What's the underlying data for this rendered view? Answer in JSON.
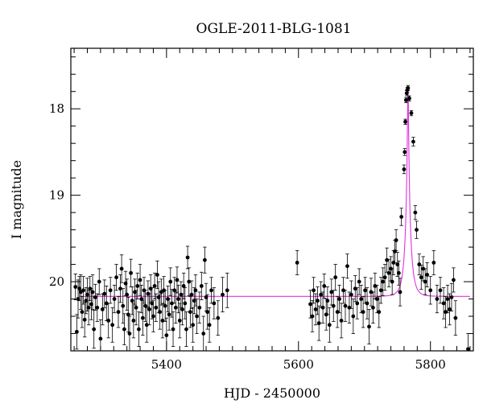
{
  "chart_data": {
    "type": "scatter",
    "title": "OGLE-2011-BLG-1081",
    "xlabel": "HJD - 2450000",
    "ylabel": "I magnitude",
    "xlim": [
      5255,
      5865
    ],
    "ylim": [
      20.8,
      17.3
    ],
    "y_inverted": true,
    "xticks_major": [
      5400,
      5600,
      5800
    ],
    "xticks_minor_step": 20,
    "yticks_major": [
      18,
      19,
      20
    ],
    "yticks_minor_step": 0.2,
    "model_color": "#e033e0",
    "point_color": "#000000",
    "model": {
      "baseline_mag": 20.17,
      "peak_hjd": 5766,
      "peak_mag": 17.75,
      "tE": 8.5,
      "u0": 0.088
    },
    "series": [
      {
        "points": [
          [
            5262,
            20.06,
            0.15
          ],
          [
            5264,
            20.58,
            0.2
          ],
          [
            5266,
            20.2,
            0.22
          ],
          [
            5268,
            20.08,
            0.14
          ],
          [
            5270,
            20.12,
            0.2
          ],
          [
            5272,
            20.35,
            0.18
          ],
          [
            5274,
            20.1,
            0.16
          ],
          [
            5276,
            20.44,
            0.2
          ],
          [
            5278,
            20.22,
            0.15
          ],
          [
            5280,
            20.15,
            0.19
          ],
          [
            5282,
            20.3,
            0.2
          ],
          [
            5284,
            20.08,
            0.14
          ],
          [
            5286,
            20.26,
            0.18
          ],
          [
            5288,
            20.12,
            0.2
          ],
          [
            5290,
            20.55,
            0.22
          ],
          [
            5292,
            20.18,
            0.15
          ],
          [
            5295,
            20.3,
            0.16
          ],
          [
            5298,
            20.0,
            0.15
          ],
          [
            5300,
            20.66,
            0.22
          ],
          [
            5303,
            20.32,
            0.18
          ],
          [
            5306,
            20.14,
            0.16
          ],
          [
            5309,
            20.25,
            0.2
          ],
          [
            5312,
            20.45,
            0.2
          ],
          [
            5315,
            20.1,
            0.15
          ],
          [
            5318,
            20.5,
            0.2
          ],
          [
            5321,
            20.2,
            0.16
          ],
          [
            5324,
            19.95,
            0.15
          ],
          [
            5327,
            20.35,
            0.18
          ],
          [
            5330,
            20.08,
            0.16
          ],
          [
            5332,
            19.85,
            0.16
          ],
          [
            5334,
            20.28,
            0.2
          ],
          [
            5336,
            20.55,
            0.18
          ],
          [
            5338,
            20.02,
            0.14
          ],
          [
            5340,
            20.15,
            0.18
          ],
          [
            5342,
            20.38,
            0.2
          ],
          [
            5344,
            20.6,
            0.2
          ],
          [
            5346,
            19.9,
            0.16
          ],
          [
            5348,
            20.22,
            0.16
          ],
          [
            5350,
            20.45,
            0.2
          ],
          [
            5352,
            20.12,
            0.15
          ],
          [
            5354,
            20.3,
            0.2
          ],
          [
            5356,
            20.05,
            0.15
          ],
          [
            5358,
            20.55,
            0.2
          ],
          [
            5360,
            19.98,
            0.18
          ],
          [
            5362,
            20.2,
            0.16
          ],
          [
            5364,
            20.42,
            0.2
          ],
          [
            5366,
            20.1,
            0.15
          ],
          [
            5368,
            20.28,
            0.18
          ],
          [
            5370,
            20.5,
            0.2
          ],
          [
            5372,
            20.14,
            0.15
          ],
          [
            5374,
            20.32,
            0.18
          ],
          [
            5376,
            20.08,
            0.16
          ],
          [
            5378,
            20.25,
            0.18
          ],
          [
            5380,
            20.4,
            0.18
          ],
          [
            5382,
            20.05,
            0.15
          ],
          [
            5384,
            20.3,
            0.16
          ],
          [
            5386,
            19.92,
            0.16
          ],
          [
            5388,
            20.18,
            0.18
          ],
          [
            5390,
            20.35,
            0.2
          ],
          [
            5392,
            20.12,
            0.15
          ],
          [
            5394,
            20.45,
            0.2
          ],
          [
            5396,
            20.1,
            0.16
          ],
          [
            5398,
            20.28,
            0.18
          ],
          [
            5400,
            20.62,
            0.2
          ],
          [
            5402,
            20.2,
            0.15
          ],
          [
            5404,
            20.38,
            0.18
          ],
          [
            5406,
            20.0,
            0.16
          ],
          [
            5408,
            20.25,
            0.16
          ],
          [
            5410,
            20.55,
            0.2
          ],
          [
            5412,
            20.1,
            0.15
          ],
          [
            5414,
            20.3,
            0.18
          ],
          [
            5416,
            19.98,
            0.15
          ],
          [
            5418,
            20.2,
            0.16
          ],
          [
            5420,
            20.45,
            0.2
          ],
          [
            5422,
            20.15,
            0.15
          ],
          [
            5424,
            20.32,
            0.18
          ],
          [
            5426,
            20.05,
            0.15
          ],
          [
            5428,
            20.25,
            0.18
          ],
          [
            5430,
            20.55,
            0.2
          ],
          [
            5432,
            19.72,
            0.13
          ],
          [
            5434,
            20.0,
            0.16
          ],
          [
            5436,
            20.35,
            0.18
          ],
          [
            5438,
            20.15,
            0.16
          ],
          [
            5440,
            20.5,
            0.2
          ],
          [
            5442,
            20.22,
            0.15
          ],
          [
            5444,
            20.1,
            0.18
          ],
          [
            5446,
            20.4,
            0.2
          ],
          [
            5450,
            20.3,
            0.18
          ],
          [
            5453,
            20.05,
            0.16
          ],
          [
            5456,
            20.6,
            0.2
          ],
          [
            5458,
            19.75,
            0.15
          ],
          [
            5460,
            20.18,
            0.16
          ],
          [
            5462,
            20.35,
            0.2
          ],
          [
            5465,
            20.5,
            0.2
          ],
          [
            5468,
            20.1,
            0.15
          ],
          [
            5472,
            20.25,
            0.18
          ],
          [
            5478,
            20.42,
            0.2
          ],
          [
            5485,
            20.15,
            0.2
          ],
          [
            5492,
            20.1,
            0.2
          ],
          [
            5598,
            19.78,
            0.14
          ],
          [
            5618,
            20.26,
            0.16
          ],
          [
            5621,
            20.4,
            0.18
          ],
          [
            5623,
            20.1,
            0.15
          ],
          [
            5626,
            20.32,
            0.18
          ],
          [
            5629,
            20.22,
            0.16
          ],
          [
            5631,
            20.48,
            0.2
          ],
          [
            5634,
            20.15,
            0.15
          ],
          [
            5637,
            20.3,
            0.18
          ],
          [
            5639,
            20.05,
            0.14
          ],
          [
            5642,
            20.38,
            0.18
          ],
          [
            5644,
            20.22,
            0.16
          ],
          [
            5647,
            20.5,
            0.2
          ],
          [
            5650,
            20.12,
            0.15
          ],
          [
            5653,
            20.28,
            0.18
          ],
          [
            5656,
            19.95,
            0.15
          ],
          [
            5659,
            20.35,
            0.18
          ],
          [
            5662,
            20.2,
            0.16
          ],
          [
            5665,
            20.45,
            0.2
          ],
          [
            5668,
            20.1,
            0.15
          ],
          [
            5671,
            20.28,
            0.18
          ],
          [
            5674,
            19.82,
            0.14
          ],
          [
            5677,
            20.3,
            0.18
          ],
          [
            5680,
            20.15,
            0.16
          ],
          [
            5683,
            20.4,
            0.2
          ],
          [
            5686,
            20.08,
            0.15
          ],
          [
            5689,
            20.25,
            0.18
          ],
          [
            5692,
            20.0,
            0.15
          ],
          [
            5695,
            20.2,
            0.16
          ],
          [
            5698,
            20.35,
            0.18
          ],
          [
            5701,
            20.1,
            0.15
          ],
          [
            5704,
            20.25,
            0.18
          ],
          [
            5707,
            20.52,
            0.2
          ],
          [
            5710,
            20.12,
            0.16
          ],
          [
            5713,
            20.3,
            0.18
          ],
          [
            5716,
            20.05,
            0.15
          ],
          [
            5719,
            20.2,
            0.16
          ],
          [
            5722,
            20.35,
            0.18
          ],
          [
            5725,
            20.1,
            0.15
          ],
          [
            5728,
            20.0,
            0.16
          ],
          [
            5731,
            19.95,
            0.15
          ],
          [
            5734,
            19.75,
            0.14
          ],
          [
            5737,
            19.9,
            0.16
          ],
          [
            5740,
            19.85,
            0.14
          ],
          [
            5742,
            20.0,
            0.15
          ],
          [
            5744,
            19.78,
            0.14
          ],
          [
            5746,
            19.65,
            0.13
          ],
          [
            5748,
            19.52,
            0.12
          ],
          [
            5750,
            19.8,
            0.14
          ],
          [
            5752,
            19.9,
            0.14
          ],
          [
            5754,
            20.12,
            0.16
          ],
          [
            5756,
            19.25,
            0.1
          ],
          [
            5760,
            18.7,
            0.05
          ],
          [
            5761,
            18.5,
            0.04
          ],
          [
            5762,
            18.15,
            0.03
          ],
          [
            5763,
            17.9,
            0.03
          ],
          [
            5764,
            17.82,
            0.03
          ],
          [
            5765,
            17.78,
            0.03
          ],
          [
            5766,
            17.76,
            0.03
          ],
          [
            5768,
            17.88,
            0.03
          ],
          [
            5771,
            18.05,
            0.03
          ],
          [
            5774,
            18.38,
            0.05
          ],
          [
            5777,
            19.2,
            0.08
          ],
          [
            5779,
            19.4,
            0.1
          ],
          [
            5783,
            19.8,
            0.12
          ],
          [
            5786,
            19.95,
            0.14
          ],
          [
            5789,
            19.85,
            0.14
          ],
          [
            5792,
            20.0,
            0.15
          ],
          [
            5795,
            19.92,
            0.14
          ],
          [
            5800,
            20.1,
            0.16
          ],
          [
            5805,
            19.78,
            0.14
          ],
          [
            5810,
            20.2,
            0.16
          ],
          [
            5815,
            20.1,
            0.15
          ],
          [
            5820,
            20.25,
            0.18
          ],
          [
            5823,
            20.35,
            0.18
          ],
          [
            5826,
            20.2,
            0.16
          ],
          [
            5829,
            20.32,
            0.18
          ],
          [
            5832,
            20.18,
            0.16
          ],
          [
            5835,
            19.98,
            0.14
          ],
          [
            5838,
            20.42,
            0.2
          ],
          [
            5857,
            20.78,
            0.18
          ]
        ]
      }
    ]
  }
}
